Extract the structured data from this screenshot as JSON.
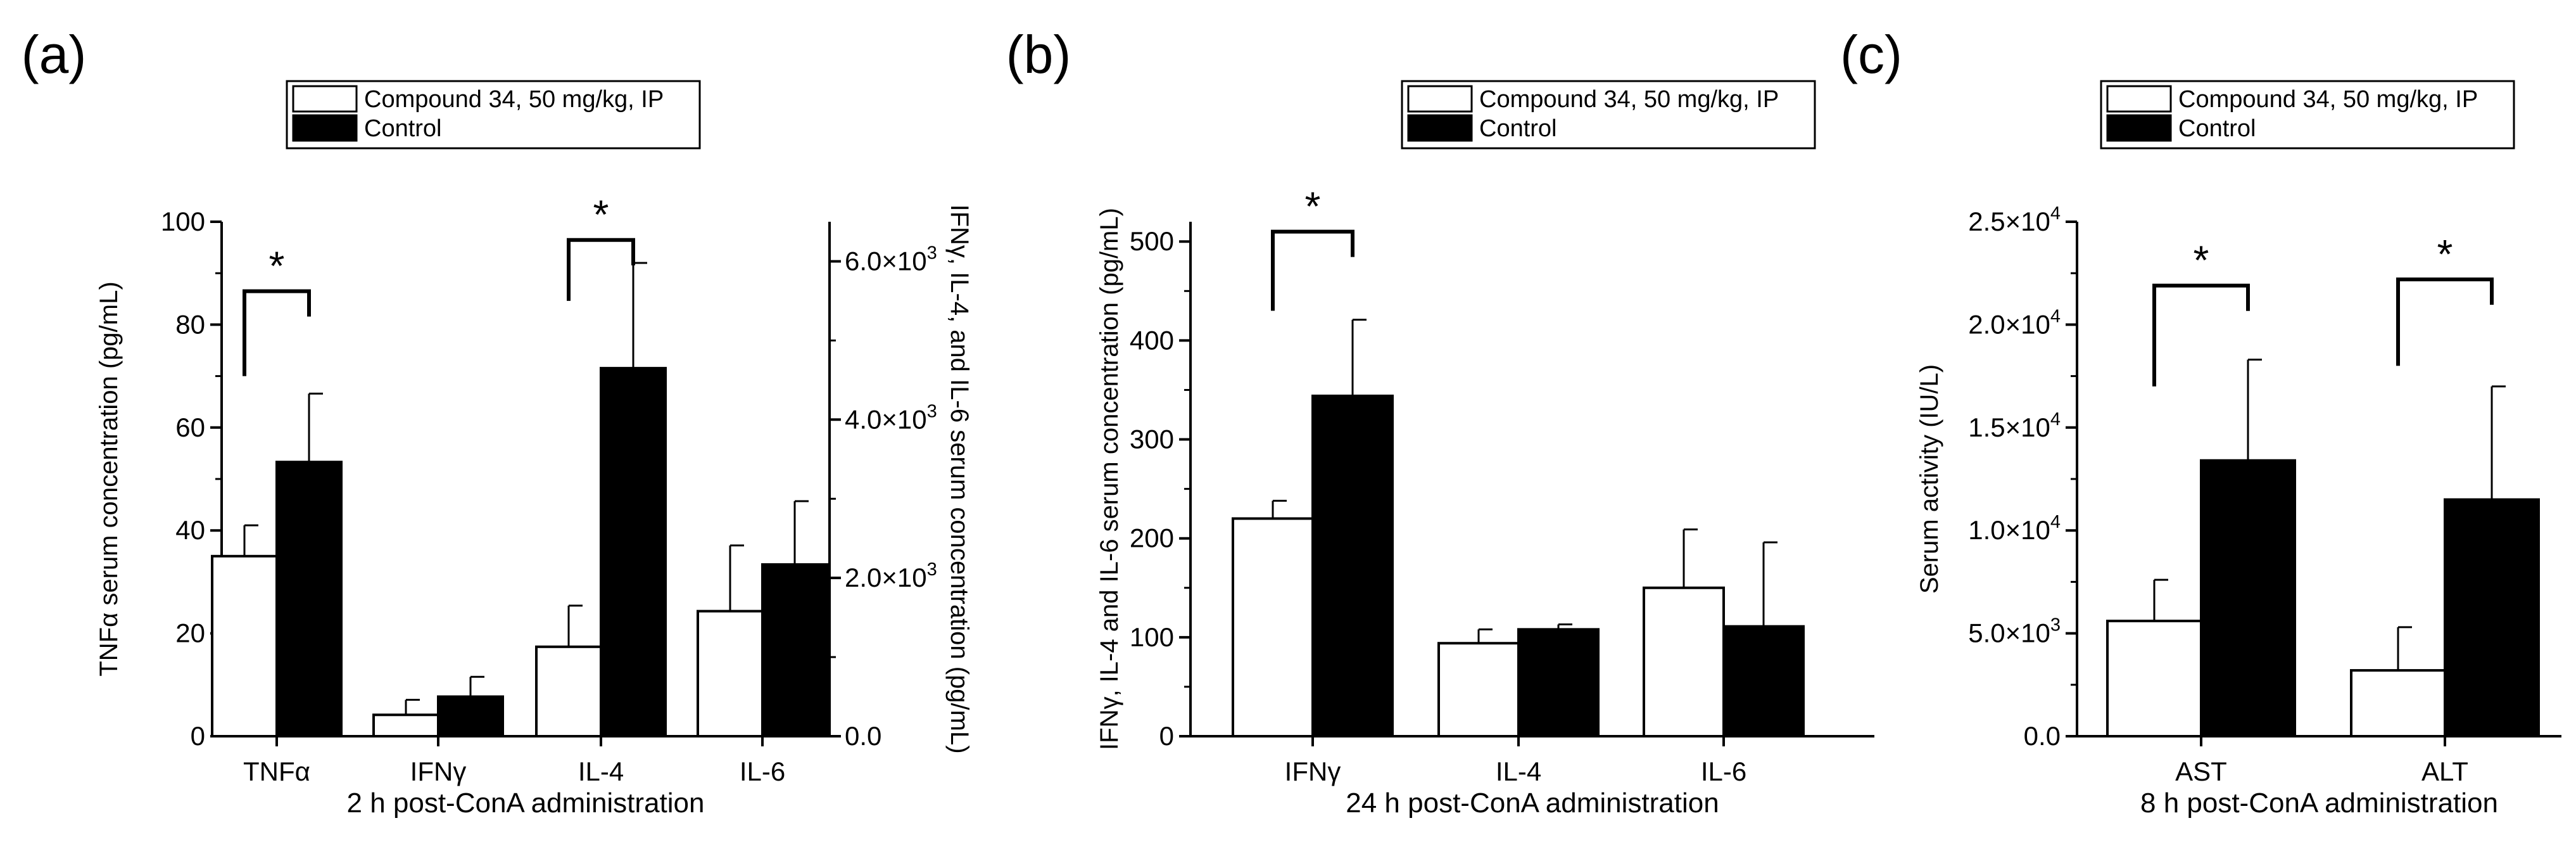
{
  "chart_data": [
    {
      "panel": "(a)",
      "type": "bar",
      "xlabel": "2 h post-ConA administration",
      "ylabel": "TNFα serum concentration (pg/mL)",
      "y2label": "IFNγ, IL-4, and IL-6 serum concentration (pg/mL)",
      "ylim": [
        0,
        100
      ],
      "y2lim": [
        0,
        6500
      ],
      "yticks": [
        "0",
        "20",
        "40",
        "60",
        "80",
        "100"
      ],
      "yticks_values": [
        0,
        20,
        40,
        60,
        80,
        100
      ],
      "y2ticks": [
        {
          "value": 0,
          "mantissa": "0.0",
          "exp": ""
        },
        {
          "value": 2000,
          "mantissa": "2.0×10",
          "exp": "3"
        },
        {
          "value": 4000,
          "mantissa": "4.0×10",
          "exp": "3"
        },
        {
          "value": 6000,
          "mantissa": "6.0×10",
          "exp": "3"
        }
      ],
      "categories": [
        "TNFα",
        "IFNγ",
        "IL-4",
        "IL-6"
      ],
      "category_axis": [
        "left",
        "right",
        "right",
        "right"
      ],
      "legend": [
        "Compound 34, 50 mg/kg, IP",
        "Control"
      ],
      "series": [
        {
          "name": "Compound 34, 50 mg/kg, IP",
          "color": "#ffffff",
          "values": [
            35,
            270,
            1130,
            1580
          ],
          "errors": [
            6,
            190,
            520,
            830
          ]
        },
        {
          "name": "Control",
          "color": "#000000",
          "values": [
            53.3,
            500,
            4650,
            2170
          ],
          "errors": [
            13.3,
            250,
            1330,
            800
          ]
        }
      ],
      "significance": [
        {
          "category": 0,
          "label": "*",
          "top": 86.5,
          "leg_bottom": 70
        },
        {
          "category": 2,
          "label": "*",
          "top": 6270,
          "leg_bottom": 5500
        }
      ]
    },
    {
      "panel": "(b)",
      "type": "bar",
      "xlabel": "24 h post-ConA administration",
      "ylabel": "IFNγ, IL-4  and IL-6 serum concentration (pg/mL)",
      "ylim": [
        0,
        520
      ],
      "yticks": [
        "0",
        "100",
        "200",
        "300",
        "400",
        "500"
      ],
      "yticks_values": [
        0,
        100,
        200,
        300,
        400,
        500
      ],
      "categories": [
        "IFNγ",
        "IL-4",
        "IL-6"
      ],
      "legend": [
        "Compound 34, 50 mg/kg, IP",
        "Control"
      ],
      "series": [
        {
          "name": "Compound 34, 50 mg/kg, IP",
          "color": "#ffffff",
          "values": [
            220,
            94,
            150
          ],
          "errors": [
            18,
            14,
            59
          ]
        },
        {
          "name": "Control",
          "color": "#000000",
          "values": [
            344,
            108,
            111
          ],
          "errors": [
            77,
            5,
            85
          ]
        }
      ],
      "significance": [
        {
          "category": 0,
          "label": "*",
          "top": 510,
          "leg_bottom": 430
        }
      ]
    },
    {
      "panel": "(c)",
      "type": "bar",
      "xlabel": "8 h post-ConA administration",
      "ylabel": "Serum activity (IU/L)",
      "ylim": [
        0,
        25000
      ],
      "yticks": [
        {
          "value": 0,
          "mantissa": "0.0",
          "exp": ""
        },
        {
          "value": 5000,
          "mantissa": "5.0×10",
          "exp": "3"
        },
        {
          "value": 10000,
          "mantissa": "1.0×10",
          "exp": "4"
        },
        {
          "value": 15000,
          "mantissa": "1.5×10",
          "exp": "4"
        },
        {
          "value": 20000,
          "mantissa": "2.0×10",
          "exp": "4"
        },
        {
          "value": 25000,
          "mantissa": "2.5×10",
          "exp": "4"
        }
      ],
      "categories": [
        "AST",
        "ALT"
      ],
      "legend": [
        "Compound 34, 50 mg/kg, IP",
        "Control"
      ],
      "series": [
        {
          "name": "Compound 34, 50 mg/kg, IP",
          "color": "#ffffff",
          "values": [
            5600,
            3200
          ],
          "errors": [
            2000,
            2100
          ]
        },
        {
          "name": "Control",
          "color": "#000000",
          "values": [
            13400,
            11500
          ],
          "errors": [
            4900,
            5500
          ]
        }
      ],
      "significance": [
        {
          "category": 0,
          "label": "*",
          "top": 21900,
          "leg_bottom": 17000
        },
        {
          "category": 1,
          "label": "*",
          "top": 22200,
          "leg_bottom": 18000
        }
      ]
    }
  ]
}
